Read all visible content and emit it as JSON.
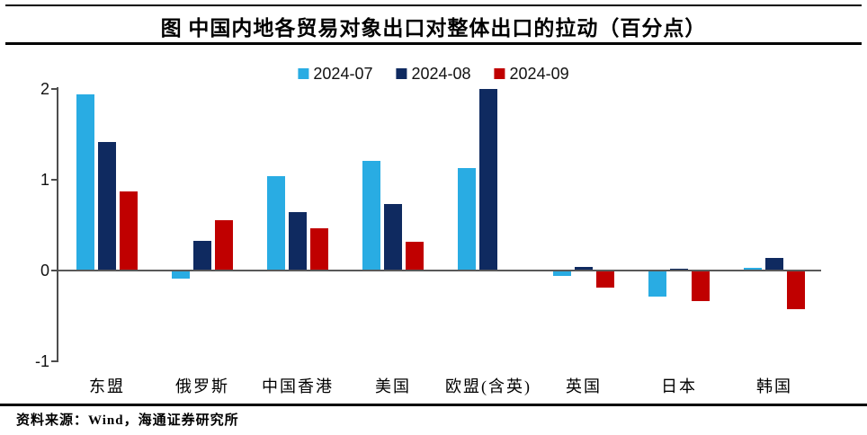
{
  "title": "图  中国内地各贸易对象出口对整体出口的拉动（百分点）",
  "footer": {
    "source_label": "资料来源：Wind，海通证券研究所"
  },
  "colors": {
    "series_2024_07": "#29ACE3",
    "series_2024_08": "#0F2A60",
    "series_2024_09": "#C00000",
    "axis": "#4d4d4d",
    "zero_line": "#595959",
    "rule": "#000000"
  },
  "chart_data": {
    "type": "bar",
    "title": "图  中国内地各贸易对象出口对整体出口的拉动（百分点）",
    "categories": [
      "东盟",
      "俄罗斯",
      "中国香港",
      "美国",
      "欧盟(含英)",
      "英国",
      "日本",
      "韩国"
    ],
    "series": [
      {
        "name": "2024-07",
        "color": "#29ACE3",
        "values": [
          1.94,
          -0.09,
          1.04,
          1.21,
          1.13,
          -0.06,
          -0.29,
          0.03
        ]
      },
      {
        "name": "2024-08",
        "color": "#0F2A60",
        "values": [
          1.42,
          0.33,
          0.64,
          0.73,
          2.0,
          0.04,
          0.02,
          0.14
        ]
      },
      {
        "name": "2024-09",
        "color": "#C00000",
        "values": [
          0.87,
          0.55,
          0.47,
          0.32,
          0.01,
          -0.19,
          -0.34,
          -0.43
        ]
      }
    ],
    "xlabel": "",
    "ylabel": "",
    "ylim": [
      -1,
      2
    ],
    "yticks": [
      2,
      1,
      0,
      -1
    ],
    "grid": false,
    "legend_position": "top-center",
    "unit": "百分点"
  }
}
